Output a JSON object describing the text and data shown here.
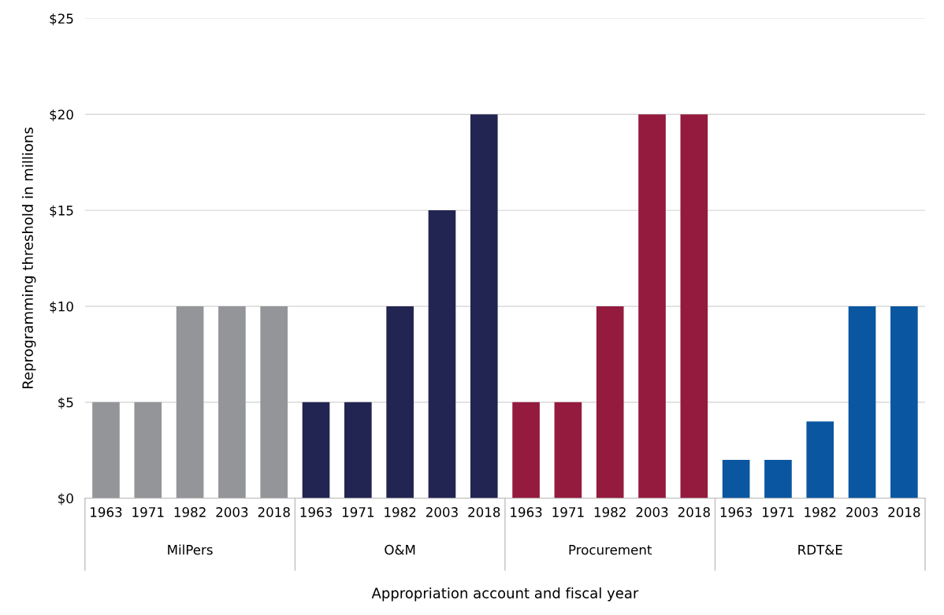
{
  "chart_data": {
    "type": "bar",
    "xlabel": "Appropriation account and fiscal year",
    "ylabel": "Reprogramming threshold in millions",
    "categories": [
      "1963",
      "1971",
      "1982",
      "2003",
      "2018",
      "1963",
      "1971",
      "1982",
      "2003",
      "2018",
      "1963",
      "1971",
      "1982",
      "2003",
      "2018",
      "1963",
      "1971",
      "1982",
      "2003",
      "2018"
    ],
    "series": [
      {
        "color": "#939598",
        "values": [
          5,
          5,
          10,
          10,
          10,
          null,
          null,
          null,
          null,
          null,
          null,
          null,
          null,
          null,
          null,
          null,
          null,
          null,
          null,
          null
        ]
      },
      {
        "color": "#222451",
        "values": [
          null,
          null,
          null,
          null,
          null,
          5,
          5,
          10,
          15,
          20,
          null,
          null,
          null,
          null,
          null,
          null,
          null,
          null,
          null,
          null
        ]
      },
      {
        "color": "#941a3e",
        "values": [
          null,
          null,
          null,
          null,
          null,
          null,
          null,
          null,
          null,
          null,
          5,
          5,
          10,
          20,
          20,
          null,
          null,
          null,
          null,
          null
        ]
      },
      {
        "color": "#0a56a0",
        "values": [
          null,
          null,
          null,
          null,
          null,
          null,
          null,
          null,
          null,
          null,
          null,
          null,
          null,
          null,
          null,
          2,
          2,
          4,
          10,
          10
        ]
      }
    ],
    "ylim": [
      0,
      25
    ],
    "yticks": [
      {
        "value": 0,
        "label": "$0"
      },
      {
        "value": 5,
        "label": "$5"
      },
      {
        "value": 10,
        "label": "$10"
      },
      {
        "value": 15,
        "label": "$15"
      },
      {
        "value": 20,
        "label": "$20"
      },
      {
        "value": 25,
        "label": "$25"
      }
    ],
    "annotations": [
      "MilPers",
      "O&M",
      "Procurement",
      "RDT&E"
    ],
    "grid": "y",
    "legend": false
  }
}
